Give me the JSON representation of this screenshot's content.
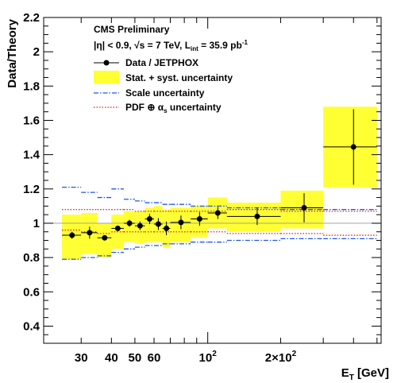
{
  "chart_data": {
    "type": "scatter",
    "xlabel": "E_T [GeV]",
    "ylabel": "Data/Theory",
    "x_scale": "log",
    "xlim": [
      21,
      520
    ],
    "ylim": [
      0.3,
      2.2
    ],
    "y_ticks": [
      "0.4",
      "0.6",
      "0.8",
      "1",
      "1.2",
      "1.4",
      "1.6",
      "1.8",
      "2",
      "2.2"
    ],
    "x_tick_labels": [
      {
        "value": 30,
        "label": "30"
      },
      {
        "value": 40,
        "label": "40"
      },
      {
        "value": 50,
        "label": "50"
      },
      {
        "value": 60,
        "label": "60"
      },
      {
        "value": 100,
        "label": "10",
        "sup": "2"
      },
      {
        "value": 200,
        "label": "2×10",
        "sup": "2"
      }
    ],
    "header": {
      "line1": "CMS Preliminary",
      "line2": "|η| < 0.9, √s = 7 TeV, L",
      "line2_sub": "int",
      "line2_tail": " = 35.9 pb",
      "line2_sup": "-1"
    },
    "legend": {
      "position": "top-left",
      "entries": [
        {
          "label": "Data / JETPHOX",
          "style": "marker"
        },
        {
          "label": "Stat. + syst. uncertainty",
          "style": "band",
          "color": "#ffff33"
        },
        {
          "label": "Scale uncertainty",
          "style": "dashdot",
          "color": "#2255ee"
        },
        {
          "label": "PDF ⊕ α",
          "sub": "s",
          "tail": " uncertainty",
          "style": "dotted",
          "color": "#dd2222"
        }
      ]
    },
    "colors": {
      "band": "#ffff33",
      "scale": "#2255ee",
      "pdf": "#dd2222",
      "ref_line": "#999999",
      "marker": "#000000"
    },
    "bins": [
      {
        "lo": 25,
        "hi": 30,
        "x": 27.5,
        "y": 0.93,
        "err": 0.02,
        "band": [
          0.79,
          1.05
        ],
        "scale": [
          0.79,
          1.21
        ],
        "pdf": [
          0.96,
          1.08
        ]
      },
      {
        "lo": 30,
        "hi": 35,
        "x": 32.5,
        "y": 0.945,
        "err": 0.035,
        "band": [
          0.82,
          1.06
        ],
        "scale": [
          0.8,
          1.18
        ],
        "pdf": [
          0.95,
          1.08
        ]
      },
      {
        "lo": 35,
        "hi": 40,
        "x": 37.5,
        "y": 0.915,
        "err": 0.01,
        "band": [
          0.8,
          1.0
        ],
        "scale": [
          0.81,
          1.15
        ],
        "pdf": [
          0.94,
          1.08
        ]
      },
      {
        "lo": 40,
        "hi": 45,
        "x": 42.5,
        "y": 0.97,
        "err": 0.015,
        "band": [
          0.85,
          1.05
        ],
        "scale": [
          0.83,
          1.2
        ],
        "pdf": [
          0.95,
          1.08
        ]
      },
      {
        "lo": 45,
        "hi": 50,
        "x": 47.5,
        "y": 1.0,
        "err": 0.02,
        "band": [
          0.89,
          1.07
        ],
        "scale": [
          0.85,
          1.14
        ],
        "pdf": [
          0.95,
          1.08
        ]
      },
      {
        "lo": 50,
        "hi": 55,
        "x": 52.5,
        "y": 0.985,
        "err": 0.025,
        "band": [
          0.88,
          1.07
        ],
        "scale": [
          0.86,
          1.13
        ],
        "pdf": [
          0.95,
          1.07
        ]
      },
      {
        "lo": 55,
        "hi": 60,
        "x": 57.5,
        "y": 1.025,
        "err": 0.03,
        "band": [
          0.89,
          1.09
        ],
        "scale": [
          0.87,
          1.12
        ],
        "pdf": [
          0.95,
          1.07
        ]
      },
      {
        "lo": 60,
        "hi": 65,
        "x": 62.5,
        "y": 0.995,
        "err": 0.035,
        "band": [
          0.89,
          1.1
        ],
        "scale": [
          0.87,
          1.12
        ],
        "pdf": [
          0.95,
          1.07
        ]
      },
      {
        "lo": 65,
        "hi": 70,
        "x": 67.5,
        "y": 0.97,
        "err": 0.04,
        "band": [
          0.86,
          1.08
        ],
        "scale": [
          0.88,
          1.11
        ],
        "pdf": [
          0.95,
          1.07
        ]
      },
      {
        "lo": 70,
        "hi": 85,
        "x": 77.5,
        "y": 1.005,
        "err": 0.04,
        "band": [
          0.89,
          1.09
        ],
        "scale": [
          0.88,
          1.11
        ],
        "pdf": [
          0.95,
          1.07
        ]
      },
      {
        "lo": 85,
        "hi": 100,
        "x": 92.5,
        "y": 1.025,
        "err": 0.04,
        "band": [
          0.92,
          1.1
        ],
        "scale": [
          0.89,
          1.1
        ],
        "pdf": [
          0.95,
          1.07
        ]
      },
      {
        "lo": 100,
        "hi": 120,
        "x": 110,
        "y": 1.06,
        "err": 0.035,
        "band": [
          0.97,
          1.15
        ],
        "scale": [
          0.89,
          1.1
        ],
        "pdf": [
          0.95,
          1.07
        ]
      },
      {
        "lo": 120,
        "hi": 200,
        "x": 160,
        "y": 1.04,
        "err": 0.05,
        "band": [
          0.95,
          1.12
        ],
        "scale": [
          0.9,
          1.09
        ],
        "pdf": [
          0.94,
          1.08
        ]
      },
      {
        "lo": 200,
        "hi": 300,
        "x": 250,
        "y": 1.09,
        "err": 0.085,
        "band": [
          0.97,
          1.19
        ],
        "scale": [
          0.91,
          1.08
        ],
        "pdf": [
          0.94,
          1.07
        ]
      },
      {
        "lo": 300,
        "hi": 500,
        "x": 400,
        "y": 1.445,
        "err": 0.22,
        "band": [
          1.21,
          1.68
        ],
        "scale": [
          0.91,
          1.08
        ],
        "pdf": [
          0.93,
          1.07
        ]
      }
    ]
  }
}
